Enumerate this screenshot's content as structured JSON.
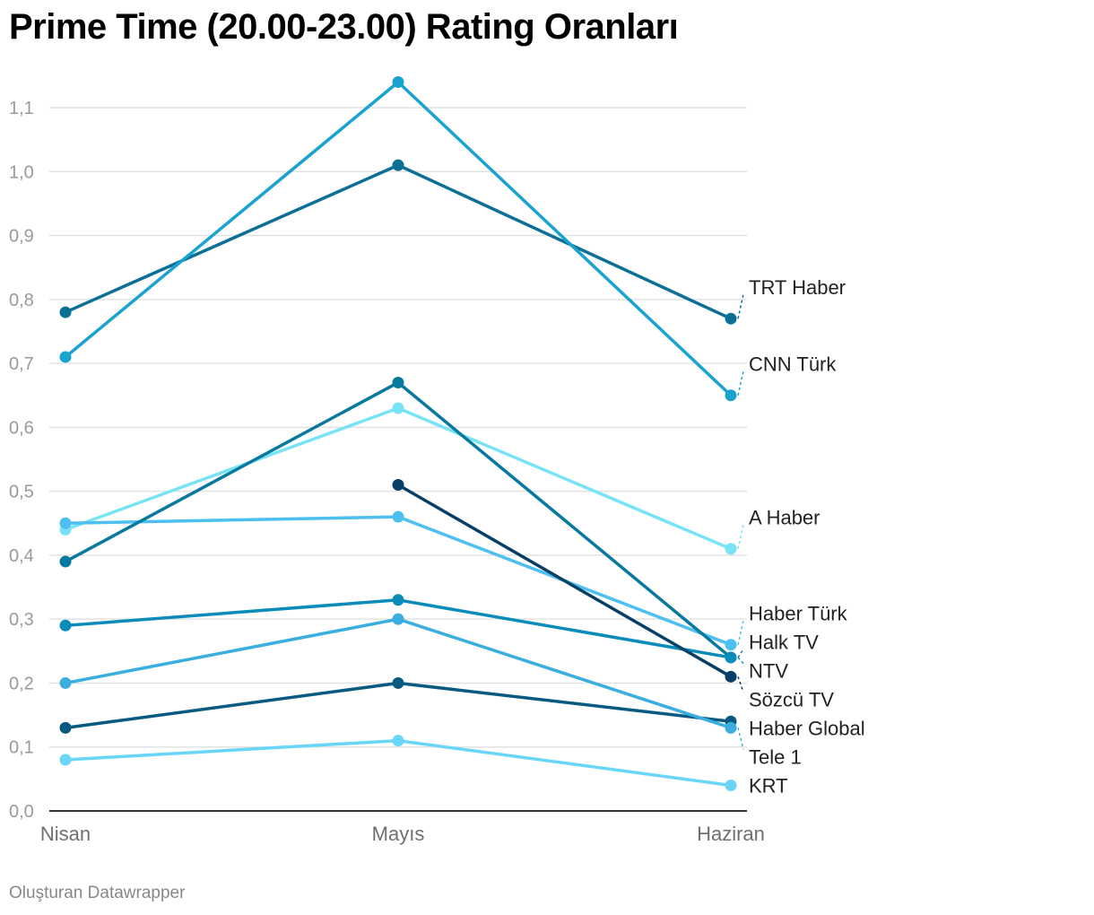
{
  "title": "Prime Time (20.00-23.00) Rating Oranları",
  "footer": "Oluşturan Datawrapper",
  "chart_data": {
    "type": "line",
    "title": "Prime Time (20.00-23.00) Rating Oranları",
    "categories": [
      "Nisan",
      "Mayıs",
      "Haziran"
    ],
    "ylim": [
      0,
      1.1
    ],
    "yticks": [
      "0,0",
      "0,1",
      "0,2",
      "0,3",
      "0,4",
      "0,5",
      "0,6",
      "0,7",
      "0,8",
      "0,9",
      "1,0",
      "1,1"
    ],
    "grid": true,
    "legend": "direct labels at right",
    "series": [
      {
        "name": "TRT Haber",
        "values": [
          0.78,
          1.01,
          0.77
        ],
        "color": "#0b6f96"
      },
      {
        "name": "CNN Türk",
        "values": [
          0.71,
          1.14,
          0.65
        ],
        "color": "#1aa3cf"
      },
      {
        "name": "A Haber",
        "values": [
          0.44,
          0.63,
          0.41
        ],
        "color": "#79e3f6"
      },
      {
        "name": "Haber Türk",
        "values": [
          0.45,
          0.46,
          0.26
        ],
        "color": "#4dbff0"
      },
      {
        "name": "Halk TV",
        "values": [
          0.39,
          0.67,
          0.24
        ],
        "color": "#08799e"
      },
      {
        "name": "NTV",
        "values": [
          0.29,
          0.33,
          0.24
        ],
        "color": "#0a8cba"
      },
      {
        "name": "Sözcü TV",
        "values": [
          null,
          0.51,
          0.21
        ],
        "color": "#073f66"
      },
      {
        "name": "Haber Global",
        "values": [
          0.13,
          0.2,
          0.14
        ],
        "color": "#085a80"
      },
      {
        "name": "Tele 1",
        "values": [
          0.2,
          0.3,
          0.13
        ],
        "color": "#3aaede"
      },
      {
        "name": "KRT",
        "values": [
          0.08,
          0.11,
          0.04
        ],
        "color": "#69d6f8"
      }
    ]
  }
}
